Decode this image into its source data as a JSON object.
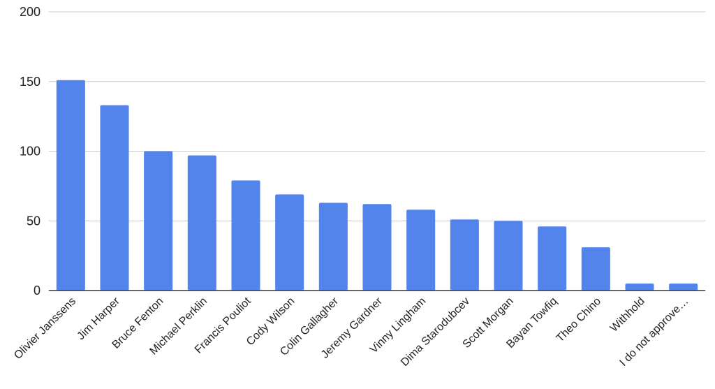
{
  "chart_data": {
    "type": "bar",
    "title": "",
    "xlabel": "",
    "ylabel": "",
    "categories": [
      "Olivier Janssens",
      "Jim Harper",
      "Bruce Fenton",
      "Michael Perklin",
      "Francis Pouliot",
      "Cody Wilson",
      "Colin Gallagher",
      "Jeremy Gardner",
      "Vinny Lingham",
      "Dima Starodubcev",
      "Scott Morgan",
      "Bayan Towfiq",
      "Theo Chino",
      "Withhold",
      "I do not approve…"
    ],
    "values": [
      151,
      133,
      100,
      97,
      79,
      69,
      63,
      62,
      58,
      51,
      50,
      46,
      31,
      5,
      5
    ],
    "ylim": [
      0,
      200
    ],
    "yticks": [
      "0",
      "50",
      "100",
      "150",
      "200"
    ],
    "grid": true,
    "legend": "none",
    "bar_color": "#5384ec",
    "grid_color": "#cccccc"
  }
}
